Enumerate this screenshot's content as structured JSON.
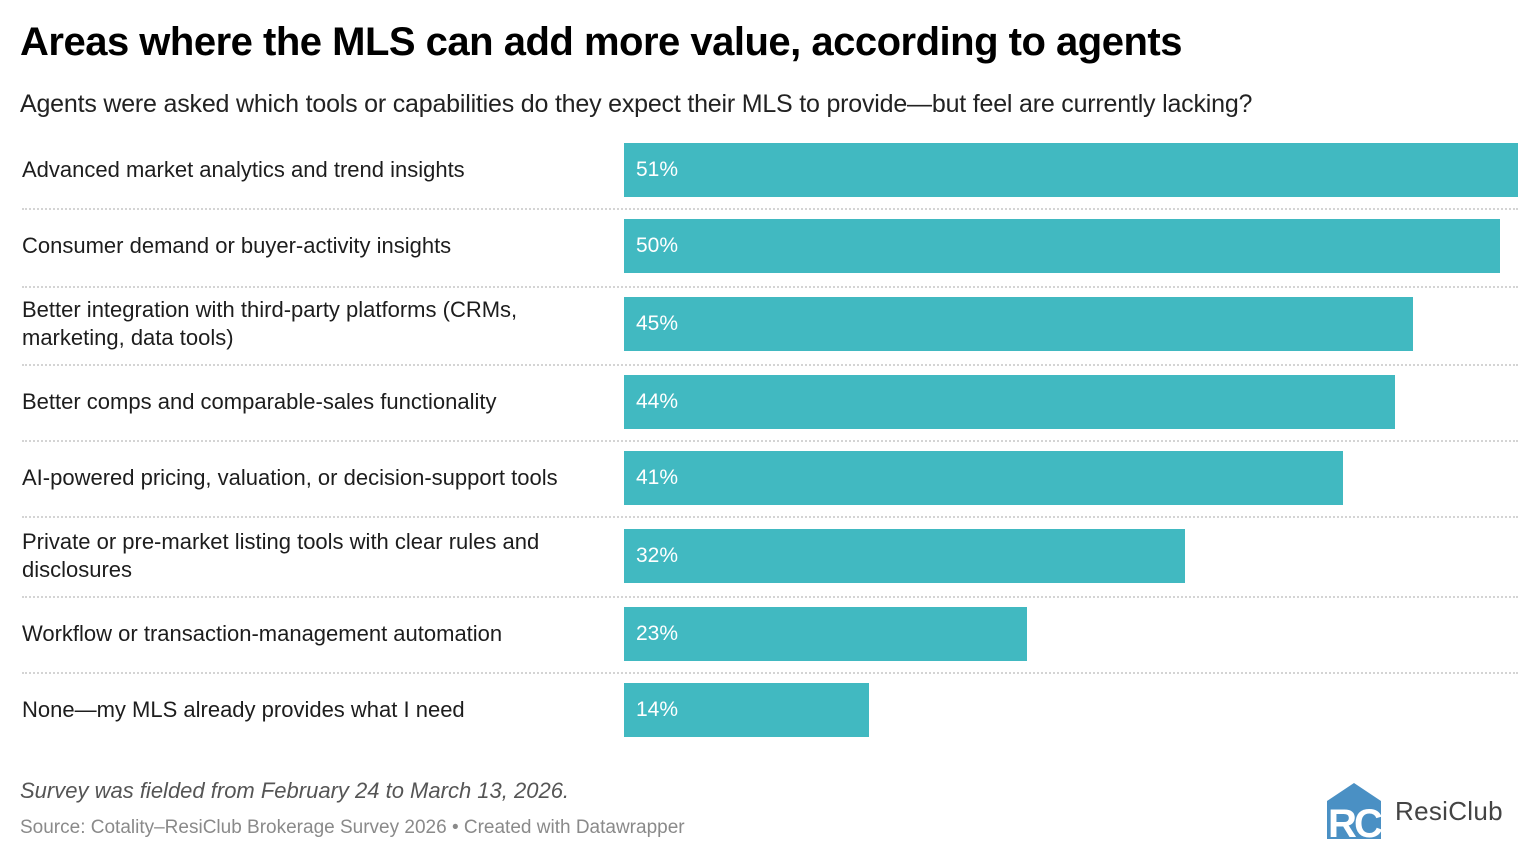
{
  "header": {
    "title": "Areas where the MLS can add more value, according to agents",
    "subtitle": "Agents were asked which tools or capabilities do they expect their MLS to provide—but feel are currently lacking?"
  },
  "footer": {
    "note": "Survey was fielded from February 24 to March 13, 2026.",
    "source": "Source: Cotality–ResiClub Brokerage Survey 2026 • Created with Datawrapper",
    "logo_text": "ResiClub",
    "logo_icon": "resiclub-house-logo-icon"
  },
  "colors": {
    "bar": "#41B9C1",
    "bar_label": "#ffffff",
    "separator": "#d4d4d4",
    "logo": "#4A90C4"
  },
  "chart_data": {
    "type": "bar",
    "orientation": "horizontal",
    "title": "Areas where the MLS can add more value, according to agents",
    "subtitle": "Agents were asked which tools or capabilities do they expect their MLS to provide—but feel are currently lacking?",
    "xlabel": "",
    "ylabel": "",
    "xlim": [
      0,
      51
    ],
    "grid": false,
    "legend": "none",
    "value_suffix": "%",
    "categories": [
      "Advanced market analytics and trend insights",
      "Consumer demand or buyer-activity insights",
      "Better integration with third-party platforms (CRMs, marketing, data tools)",
      "Better comps and comparable-sales functionality",
      "AI-powered pricing, valuation, or decision-support tools",
      "Private or pre-market listing tools with clear rules and disclosures",
      "Workflow or transaction-management automation",
      "None—my MLS already provides what I need"
    ],
    "values": [
      51,
      50,
      45,
      44,
      41,
      32,
      23,
      14
    ],
    "value_labels": [
      "51%",
      "50%",
      "45%",
      "44%",
      "41%",
      "32%",
      "23%",
      "14%"
    ]
  }
}
